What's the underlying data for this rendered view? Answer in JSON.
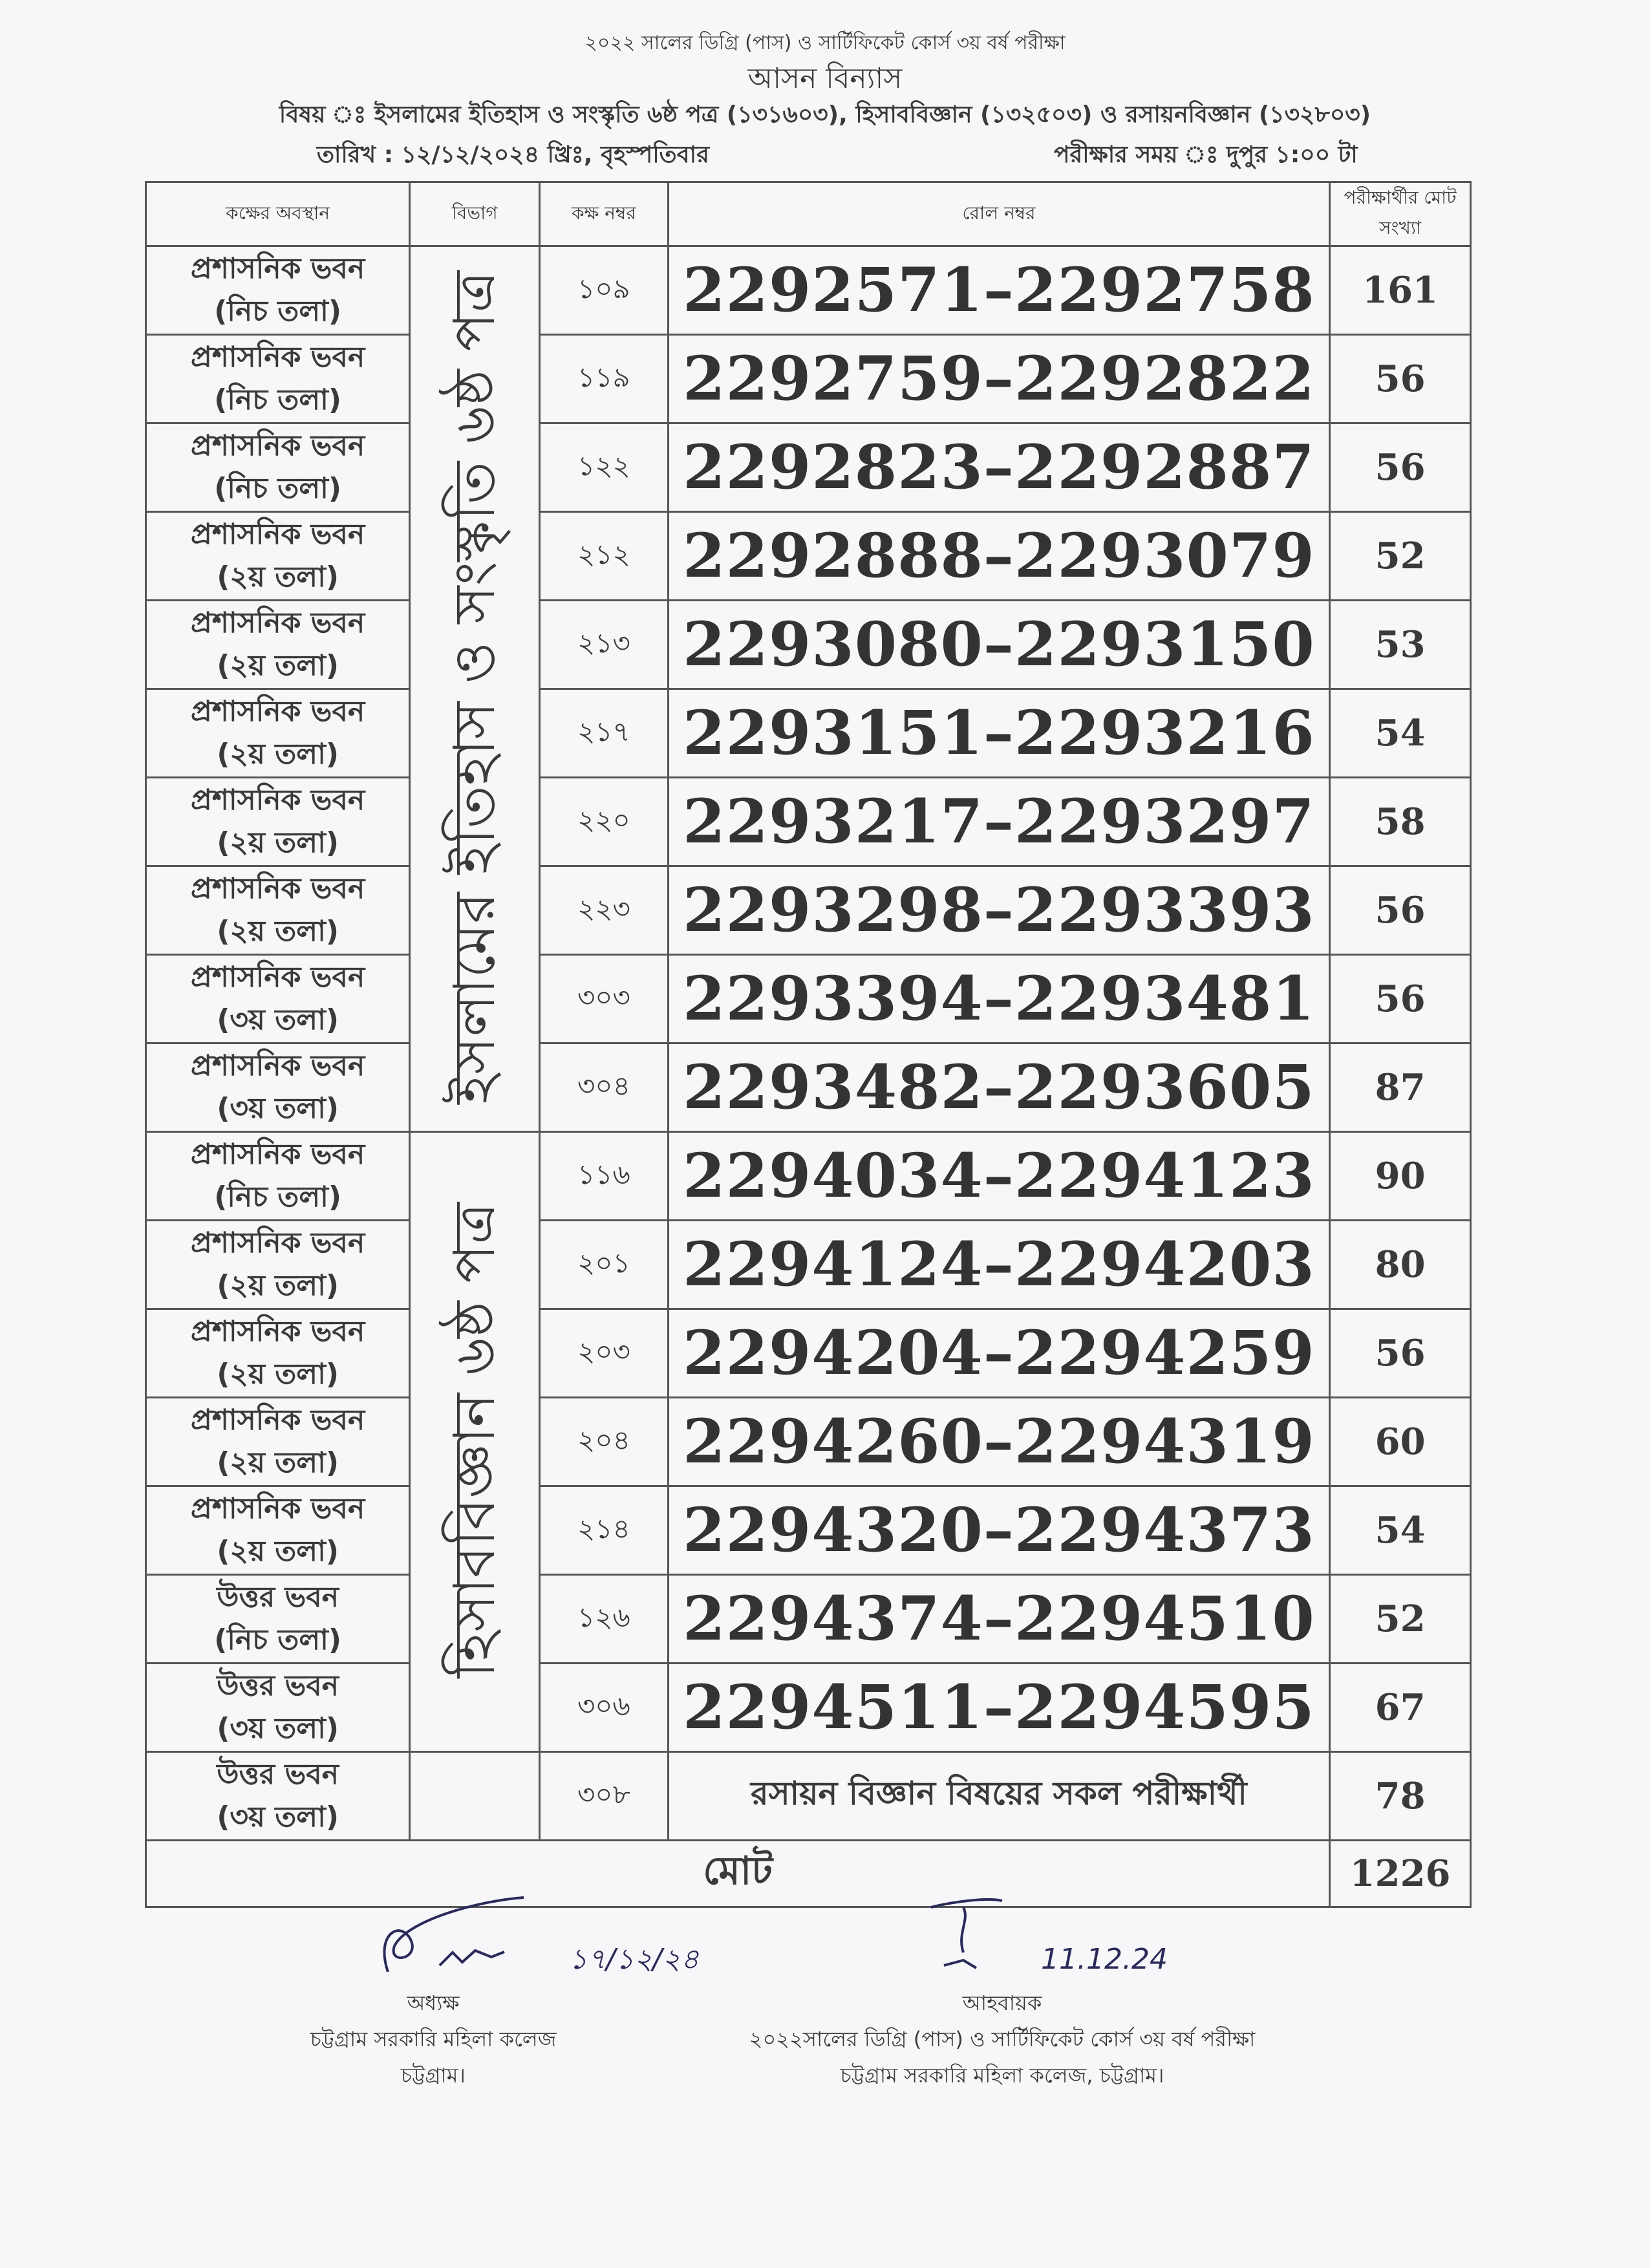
{
  "header": {
    "exam_title": "২০২২ সালের ডিগ্রি (পাস) ও সার্টিফিকেট কোর্স ৩য় বর্ষ পরীক্ষা",
    "doc_title": "আসন বিন্যাস",
    "subject": "বিষয় ঃ ইসলামের ইতিহাস ও সংস্কৃতি ৬ষ্ঠ পত্র (১৩১৬০৩), হিসাববিজ্ঞান (১৩২৫০৩) ও রসায়নবিজ্ঞান (১৩২৮০৩)",
    "date": "তারিখ : ১২/১২/২০২৪ খ্রিঃ, বৃহস্পতিবার",
    "time": "পরীক্ষার সময় ঃ দুপুর ১:০০ টা"
  },
  "table": {
    "columns": [
      "কক্ষের অবস্থান",
      "বিভাগ",
      "কক্ষ নম্বর",
      "রোল নম্বর",
      "পরীক্ষার্থীর মোট সংখ্যা"
    ],
    "departments": [
      "ইসলামের ইতিহাস ও সংস্কৃতি ৬ষ্ঠ পত্র",
      "হিসাববিজ্ঞান ৬ষ্ঠ পত্র"
    ],
    "rows": [
      {
        "building": "প্রশাসনিক ভবন",
        "floor": "(নিচ তলা)",
        "room": "১০৯",
        "roll": "2292571–2292758",
        "count": "161"
      },
      {
        "building": "প্রশাসনিক ভবন",
        "floor": "(নিচ তলা)",
        "room": "১১৯",
        "roll": "2292759–2292822",
        "count": "56"
      },
      {
        "building": "প্রশাসনিক ভবন",
        "floor": "(নিচ তলা)",
        "room": "১২২",
        "roll": "2292823–2292887",
        "count": "56"
      },
      {
        "building": "প্রশাসনিক ভবন",
        "floor": "(২য় তলা)",
        "room": "২১২",
        "roll": "2292888–2293079",
        "count": "52"
      },
      {
        "building": "প্রশাসনিক ভবন",
        "floor": "(২য় তলা)",
        "room": "২১৩",
        "roll": "2293080–2293150",
        "count": "53"
      },
      {
        "building": "প্রশাসনিক ভবন",
        "floor": "(২য় তলা)",
        "room": "২১৭",
        "roll": "2293151–2293216",
        "count": "54"
      },
      {
        "building": "প্রশাসনিক ভবন",
        "floor": "(২য় তলা)",
        "room": "২২০",
        "roll": "2293217–2293297",
        "count": "58"
      },
      {
        "building": "প্রশাসনিক ভবন",
        "floor": "(২য় তলা)",
        "room": "২২৩",
        "roll": "2293298–2293393",
        "count": "56"
      },
      {
        "building": "প্রশাসনিক ভবন",
        "floor": "(৩য় তলা)",
        "room": "৩০৩",
        "roll": "2293394–2293481",
        "count": "56"
      },
      {
        "building": "প্রশাসনিক ভবন",
        "floor": "(৩য় তলা)",
        "room": "৩০৪",
        "roll": "2293482–2293605",
        "count": "87"
      },
      {
        "building": "প্রশাসনিক ভবন",
        "floor": "(নিচ তলা)",
        "room": "১১৬",
        "roll": "2294034–2294123",
        "count": "90"
      },
      {
        "building": "প্রশাসনিক ভবন",
        "floor": "(২য় তলা)",
        "room": "২০১",
        "roll": "2294124–2294203",
        "count": "80"
      },
      {
        "building": "প্রশাসনিক ভবন",
        "floor": "(২য় তলা)",
        "room": "২০৩",
        "roll": "2294204–2294259",
        "count": "56"
      },
      {
        "building": "প্রশাসনিক ভবন",
        "floor": "(২য় তলা)",
        "room": "২০৪",
        "roll": "2294260–2294319",
        "count": "60"
      },
      {
        "building": "প্রশাসনিক ভবন",
        "floor": "(২য় তলা)",
        "room": "২১৪",
        "roll": "2294320–2294373",
        "count": "54"
      },
      {
        "building": "উত্তর ভবন",
        "floor": "(নিচ তলা)",
        "room": "১২৬",
        "roll": "2294374–2294510",
        "count": "52"
      },
      {
        "building": "উত্তর ভবন",
        "floor": "(৩য় তলা)",
        "room": "৩০৬",
        "roll": "2294511–2294595",
        "count": "67"
      },
      {
        "building": "উত্তর ভবন",
        "floor": "(৩য় তলা)",
        "room": "৩০৮",
        "roll": "রসায়ন বিজ্ঞান বিষয়ের সকল পরীক্ষার্থী",
        "count": "78"
      }
    ],
    "total_label": "মোট",
    "total": "1226"
  },
  "signatures": {
    "left": {
      "title": "অধ্যক্ষ",
      "org": "চট্টগ্রাম সরকারি মহিলা কলেজ",
      "city": "চট্টগ্রাম।",
      "handwritten_date": "১৭/১২/২৪"
    },
    "right": {
      "title": "আহবায়ক",
      "org": "২০২২সালের ডিগ্রি (পাস) ও সার্টিফিকেট কোর্স ৩য় বর্ষ পরীক্ষা",
      "city": "চট্টগ্রাম সরকারি মহিলা কলেজ, চট্টগ্রাম।",
      "handwritten_date": "11.12.24"
    }
  }
}
